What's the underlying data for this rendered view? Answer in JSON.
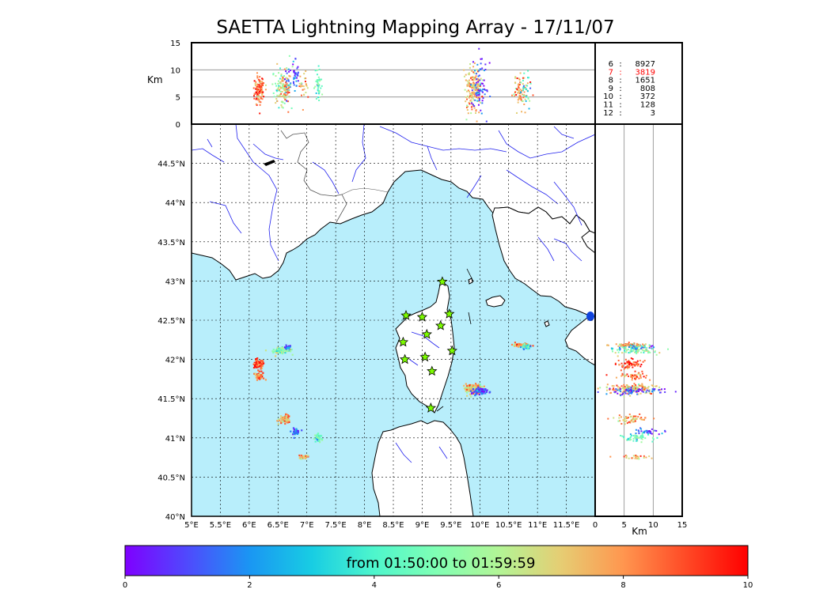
{
  "title": "SAETTA Lightning Mapping Array - 17/11/07",
  "chart_data": {
    "type": "scatter",
    "title": "SAETTA Lightning Mapping Array - 17/11/07",
    "map": {
      "lon_range": [
        5,
        12
      ],
      "lat_range": [
        40,
        45
      ],
      "xticks": [
        "5°E",
        "5.5°E",
        "6°E",
        "6.5°E",
        "7°E",
        "7.5°E",
        "8°E",
        "8.5°E",
        "9°E",
        "9.5°E",
        "10°E",
        "10.5°E",
        "11°E",
        "11.5°E"
      ],
      "yticks": [
        "40°N",
        "40.5°N",
        "41°N",
        "41.5°N",
        "42°N",
        "42.5°N",
        "43°N",
        "43.5°N",
        "44°N",
        "44.5°N"
      ],
      "grid": true
    },
    "altitude_panel": {
      "ylabel": "Km",
      "ylim": [
        0,
        15
      ],
      "yticks": [
        "0",
        "5",
        "10",
        "15"
      ]
    },
    "side_panel": {
      "xlabel": "Km",
      "xlim": [
        0,
        15
      ],
      "xticks": [
        "0",
        "5",
        "10",
        "15"
      ]
    },
    "station_counts": [
      {
        "stations": "6",
        "count": "8927",
        "color": "#000000"
      },
      {
        "stations": "7",
        "count": "3819",
        "color": "#ff0000"
      },
      {
        "stations": "8",
        "count": "1651",
        "color": "#000000"
      },
      {
        "stations": "9",
        "count": "808",
        "color": "#000000"
      },
      {
        "stations": "10",
        "count": "372",
        "color": "#000000"
      },
      {
        "stations": "11",
        "count": "128",
        "color": "#000000"
      },
      {
        "stations": "12",
        "count": "3",
        "color": "#000000"
      }
    ],
    "stations": [
      [
        9.35,
        42.99
      ],
      [
        8.72,
        42.56
      ],
      [
        9.0,
        42.54
      ],
      [
        9.47,
        42.58
      ],
      [
        9.32,
        42.43
      ],
      [
        8.67,
        42.22
      ],
      [
        9.08,
        42.32
      ],
      [
        9.52,
        42.11
      ],
      [
        8.7,
        42.0
      ],
      [
        9.05,
        42.03
      ],
      [
        9.17,
        41.85
      ],
      [
        9.15,
        41.38
      ]
    ],
    "clusters": [
      {
        "lon": 6.17,
        "lat": 41.94,
        "rx": 0.09,
        "ry": 0.06,
        "alt": 6.0,
        "alt_sd": 1.2,
        "time": 9.0,
        "n": 60
      },
      {
        "lon": 6.18,
        "lat": 41.79,
        "rx": 0.08,
        "ry": 0.05,
        "alt": 6.5,
        "alt_sd": 1.3,
        "time": 8.5,
        "n": 45
      },
      {
        "lon": 6.55,
        "lat": 42.11,
        "rx": 0.18,
        "ry": 0.04,
        "alt": 7.0,
        "alt_sd": 2.0,
        "time": 5.5,
        "n": 70
      },
      {
        "lon": 6.65,
        "lat": 42.15,
        "rx": 0.08,
        "ry": 0.03,
        "alt": 8.0,
        "alt_sd": 1.8,
        "time": 1.0,
        "n": 25
      },
      {
        "lon": 6.62,
        "lat": 41.24,
        "rx": 0.1,
        "ry": 0.05,
        "alt": 6.5,
        "alt_sd": 1.5,
        "time": 7.5,
        "n": 60
      },
      {
        "lon": 6.8,
        "lat": 41.08,
        "rx": 0.07,
        "ry": 0.04,
        "alt": 8.5,
        "alt_sd": 1.5,
        "time": 0.8,
        "n": 35
      },
      {
        "lon": 7.2,
        "lat": 41.0,
        "rx": 0.07,
        "ry": 0.06,
        "alt": 7.5,
        "alt_sd": 1.5,
        "time": 4.5,
        "n": 45
      },
      {
        "lon": 6.95,
        "lat": 40.76,
        "rx": 0.06,
        "ry": 0.03,
        "alt": 7.0,
        "alt_sd": 1.5,
        "time": 7.8,
        "n": 25
      },
      {
        "lon": 9.88,
        "lat": 41.62,
        "rx": 0.15,
        "ry": 0.06,
        "alt": 6.5,
        "alt_sd": 2.0,
        "time": 7.3,
        "n": 170
      },
      {
        "lon": 10.0,
        "lat": 41.6,
        "rx": 0.13,
        "ry": 0.04,
        "alt": 7.0,
        "alt_sd": 2.5,
        "time": 0.8,
        "n": 70
      },
      {
        "lon": 10.7,
        "lat": 42.18,
        "rx": 0.15,
        "ry": 0.03,
        "alt": 6.0,
        "alt_sd": 1.5,
        "time": 7.5,
        "n": 70
      },
      {
        "lon": 10.8,
        "lat": 42.16,
        "rx": 0.08,
        "ry": 0.03,
        "alt": 6.5,
        "alt_sd": 1.5,
        "time": 3.5,
        "n": 25
      }
    ],
    "colorbar": {
      "label": "from 01:50:00 to 01:59:59",
      "ticks": [
        "0",
        "2",
        "4",
        "6",
        "8",
        "10"
      ],
      "range": [
        0,
        10
      ],
      "colors": [
        "#7f00ff",
        "#4f4afd",
        "#1a96f3",
        "#18cde3",
        "#4ef6cc",
        "#80ffb4",
        "#b2f596",
        "#e6cd73",
        "#ff964f",
        "#ff4a26",
        "#ff0000"
      ]
    }
  },
  "colors": {
    "sea": "#b8eefb",
    "land": "#ffffff",
    "coast": "#000000",
    "rivers": "#2222ee",
    "borders": "#555555",
    "station_fill": "#7cfc00"
  }
}
